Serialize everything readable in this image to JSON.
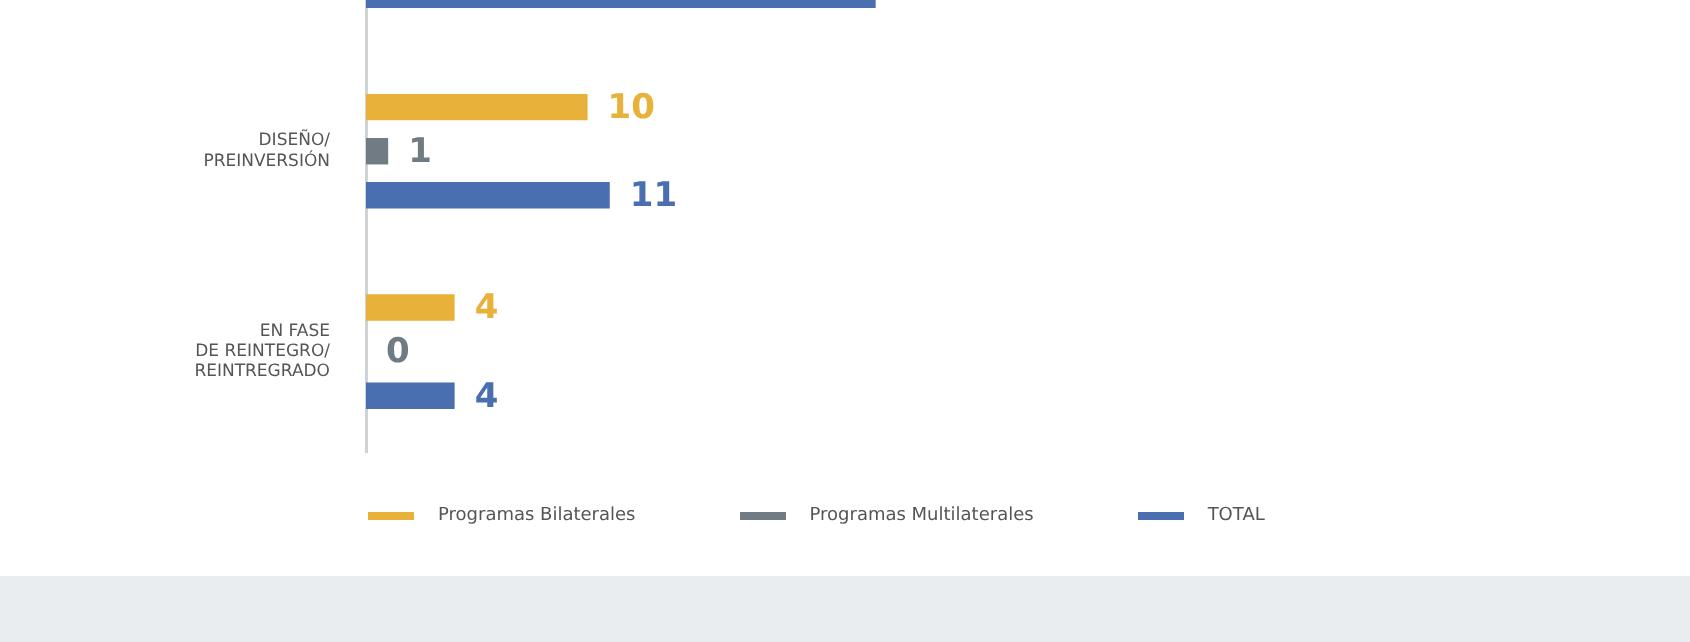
{
  "chart_data": {
    "type": "bar",
    "orientation": "horizontal",
    "legend": "bottom",
    "categories": [
      null,
      "DISEÑO/\nPREINVERSIÓN",
      "EN FASE\nDE REINTEGRO/\nREINTREGRADO"
    ],
    "series": [
      {
        "name": "Programas Bilaterales",
        "color": "#e8b13a",
        "values": [
          null,
          10,
          4
        ],
        "value_labels": [
          null,
          "10",
          "4"
        ]
      },
      {
        "name": "Programas Multilaterales",
        "color": "#707b83",
        "values": [
          null,
          1,
          0
        ],
        "value_labels": [
          null,
          "1",
          "0"
        ]
      },
      {
        "name": "TOTAL",
        "color": "#4a6fb0",
        "values": [
          23,
          11,
          4
        ],
        "value_labels": [
          null,
          "11",
          "4"
        ]
      }
    ]
  }
}
